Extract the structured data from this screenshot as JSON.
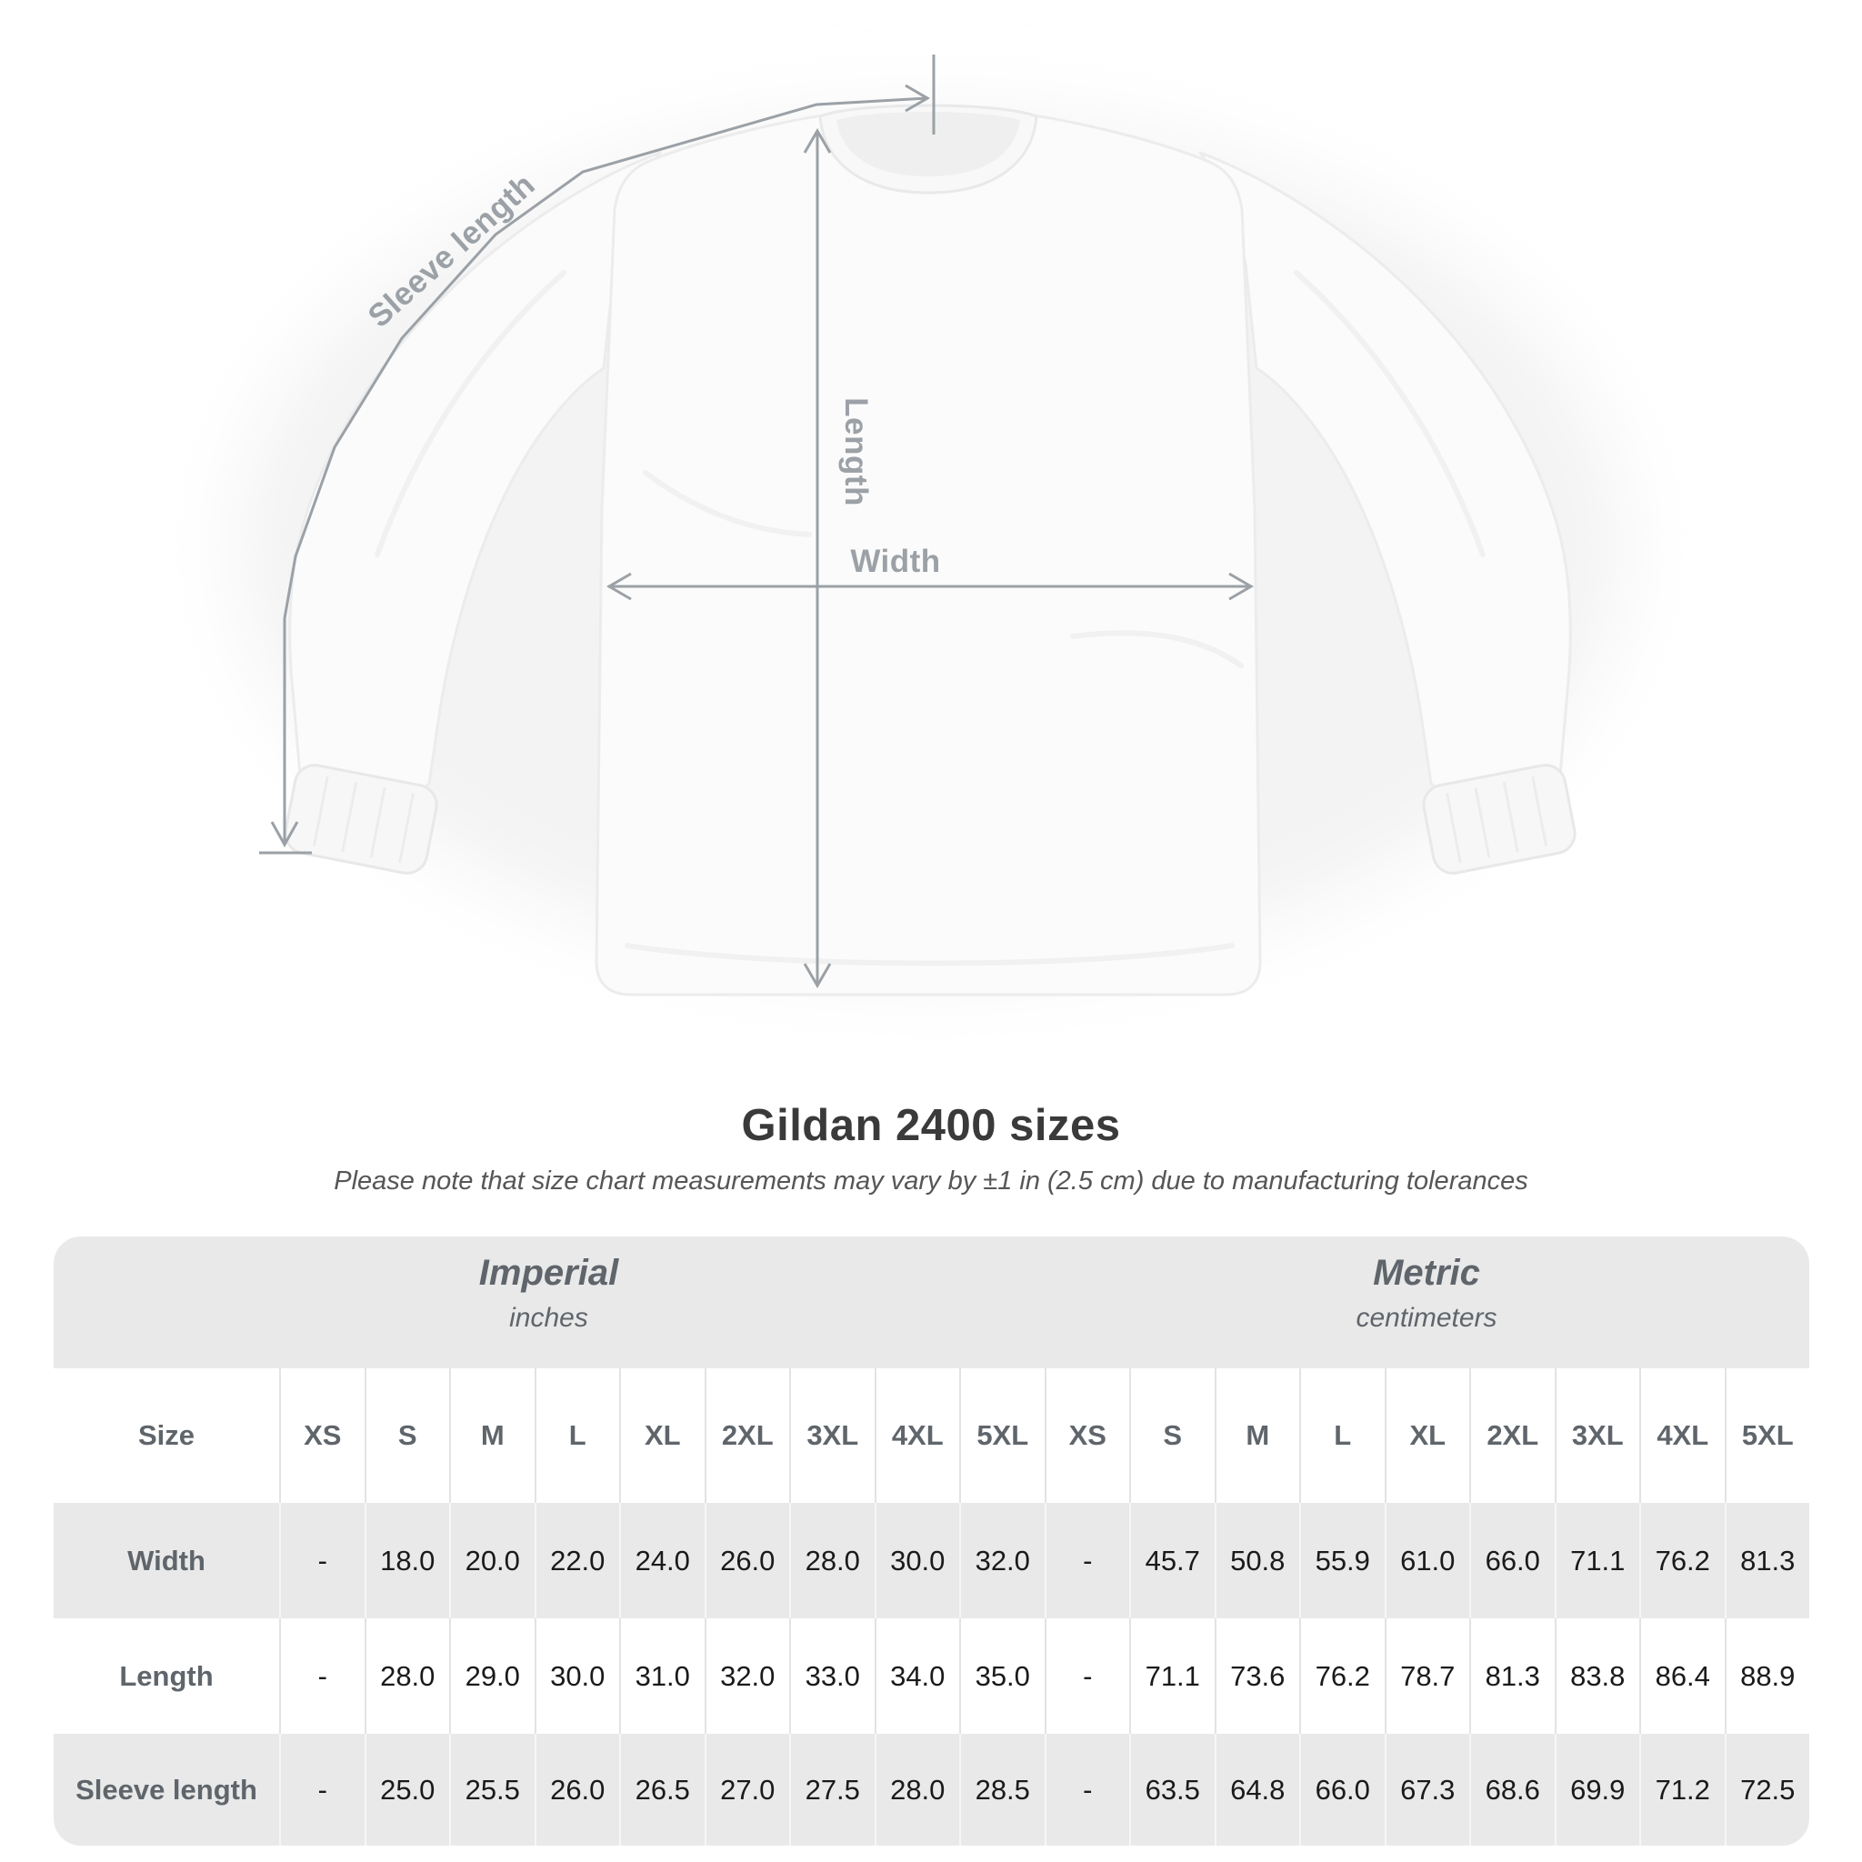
{
  "diagram": {
    "sleeve_length_label": "Sleeve length",
    "length_label": "Length",
    "width_label": "Width"
  },
  "title": "Gildan 2400 sizes",
  "subtitle": "Please note that size chart measurements may vary by ±1 in (2.5 cm) due to manufacturing tolerances",
  "size_chart": {
    "unit_groups": [
      {
        "name": "Imperial",
        "unit": "inches"
      },
      {
        "name": "Metric",
        "unit": "centimeters"
      }
    ],
    "header": {
      "size_label": "Size",
      "imperial_sizes": [
        "XS",
        "S",
        "M",
        "L",
        "XL",
        "2XL",
        "3XL",
        "4XL",
        "5XL"
      ],
      "metric_sizes": [
        "XS",
        "S",
        "M",
        "L",
        "XL",
        "2XL",
        "3XL",
        "4XL",
        "5XL"
      ]
    },
    "rows": [
      {
        "label": "Width",
        "imperial": [
          "-",
          "18.0",
          "20.0",
          "22.0",
          "24.0",
          "26.0",
          "28.0",
          "30.0",
          "32.0"
        ],
        "metric": [
          "-",
          "45.7",
          "50.8",
          "55.9",
          "61.0",
          "66.0",
          "71.1",
          "76.2",
          "81.3"
        ]
      },
      {
        "label": "Length",
        "imperial": [
          "-",
          "28.0",
          "29.0",
          "30.0",
          "31.0",
          "32.0",
          "33.0",
          "34.0",
          "35.0"
        ],
        "metric": [
          "-",
          "71.1",
          "73.6",
          "76.2",
          "78.7",
          "81.3",
          "83.8",
          "86.4",
          "88.9"
        ]
      },
      {
        "label": "Sleeve length",
        "imperial": [
          "-",
          "25.0",
          "25.5",
          "26.0",
          "26.5",
          "27.0",
          "27.5",
          "28.0",
          "28.5"
        ],
        "metric": [
          "-",
          "63.5",
          "64.8",
          "66.0",
          "67.3",
          "68.6",
          "69.9",
          "71.2",
          "72.5"
        ]
      }
    ]
  },
  "chart_data": {
    "type": "table",
    "title": "Gildan 2400 sizes",
    "columns": [
      "Size",
      "XS",
      "S",
      "M",
      "L",
      "XL",
      "2XL",
      "3XL",
      "4XL",
      "5XL"
    ],
    "imperial_unit": "inches",
    "metric_unit": "centimeters",
    "rows_imperial": [
      [
        "Width",
        "-",
        18.0,
        20.0,
        22.0,
        24.0,
        26.0,
        28.0,
        30.0,
        32.0
      ],
      [
        "Length",
        "-",
        28.0,
        29.0,
        30.0,
        31.0,
        32.0,
        33.0,
        34.0,
        35.0
      ],
      [
        "Sleeve length",
        "-",
        25.0,
        25.5,
        26.0,
        26.5,
        27.0,
        27.5,
        28.0,
        28.5
      ]
    ],
    "rows_metric": [
      [
        "Width",
        "-",
        45.7,
        50.8,
        55.9,
        61.0,
        66.0,
        71.1,
        76.2,
        81.3
      ],
      [
        "Length",
        "-",
        71.1,
        73.6,
        76.2,
        78.7,
        81.3,
        83.8,
        86.4,
        88.9
      ],
      [
        "Sleeve length",
        "-",
        63.5,
        64.8,
        66.0,
        67.3,
        68.6,
        69.9,
        71.2,
        72.5
      ]
    ]
  },
  "colors": {
    "page_background": "#ffffff",
    "annotation_gray": "#9ba1a6",
    "title_text": "#3a3a3a",
    "note_text": "#565656",
    "table_band_gray": "#e9e9e9",
    "row_stripe_gray": "#e9e9e9",
    "header_text_gray": "#5f656b",
    "value_text": "#1a1a1a"
  }
}
